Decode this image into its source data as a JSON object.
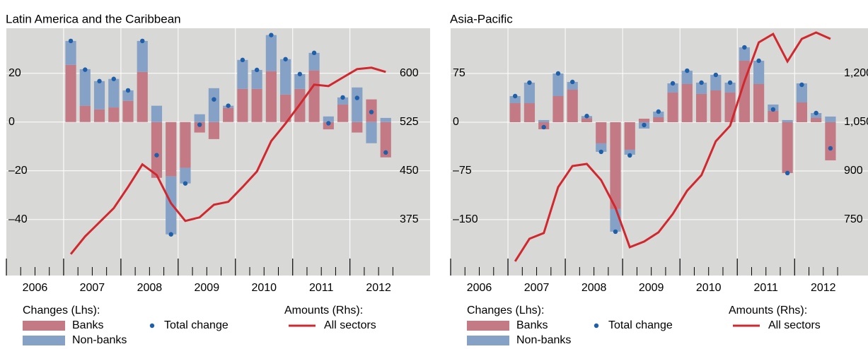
{
  "chart_data": [
    {
      "type": "bar",
      "title": "Latin America and the Caribbean",
      "legend_headings": [
        "Changes (Lhs):",
        "Amounts (Rhs):"
      ],
      "x": [
        2007.125,
        2007.375,
        2007.625,
        2007.875,
        2008.125,
        2008.375,
        2008.625,
        2008.875,
        2009.125,
        2009.375,
        2009.625,
        2009.875,
        2010.125,
        2010.375,
        2010.625,
        2010.875,
        2011.125,
        2011.375,
        2011.625,
        2011.875,
        2012.125,
        2012.375,
        2012.625
      ],
      "xlim": [
        2006,
        2013.4
      ],
      "xticks": [
        2006,
        2007,
        2008,
        2009,
        2010,
        2011,
        2012
      ],
      "ylim": [
        -63,
        38.5
      ],
      "yticks": [
        {
          "value": -40,
          "label": "–40"
        },
        {
          "value": -20,
          "label": "–20"
        },
        0,
        20
      ],
      "y2lim": [
        288.75,
        669.375
      ],
      "y2ticks": [
        375,
        450,
        525,
        600
      ],
      "grid": true,
      "series": [
        {
          "name": "Banks",
          "type": "bar",
          "color": "#c47a84",
          "values": [
            23.5,
            6.7,
            5.2,
            6,
            8.7,
            20.6,
            -22.9,
            -22.3,
            -18.8,
            -4.3,
            -7,
            5.8,
            13.6,
            13.6,
            20.9,
            11.3,
            13.6,
            21.2,
            -3,
            7.2,
            -4.3,
            9.3,
            -14.5
          ]
        },
        {
          "name": "Non-banks",
          "type": "bar",
          "color": "#85a2c6",
          "values": [
            9.8,
            15,
            11.6,
            11.7,
            4.3,
            12.7,
            6.7,
            -23.8,
            -6.4,
            3.2,
            13.9,
            0.9,
            11.9,
            7.8,
            14.8,
            14.5,
            6.1,
            7.2,
            2.3,
            2.9,
            14.2,
            -8.7,
            1.7
          ]
        },
        {
          "name": "Total change",
          "type": "scatter",
          "color": "#1f5ea8",
          "values": [
            33.3,
            21.5,
            16.8,
            17.7,
            13,
            33.3,
            -13.6,
            -46.1,
            -25.2,
            -1.1,
            9.3,
            6.7,
            25.5,
            21.4,
            35.7,
            25.8,
            19.7,
            28.4,
            -0.5,
            10.1,
            9.9,
            4.1,
            -12.5
          ]
        },
        {
          "name": "All sectors",
          "type": "line",
          "axis": "y2",
          "color": "#d0282e",
          "values": [
            321.7,
            348.9,
            370.7,
            392.4,
            425,
            459.8,
            443.5,
            400,
            372.8,
            378.3,
            397.8,
            402.2,
            425,
            448.9,
            495.7,
            522.8,
            552.2,
            582.6,
            580.4,
            593.5,
            606.5,
            608.7,
            602.2
          ]
        }
      ]
    },
    {
      "type": "bar",
      "title": "Asia-Pacific",
      "legend_headings": [
        "Changes (Lhs):",
        "Amounts (Rhs):"
      ],
      "x": [
        2007.125,
        2007.375,
        2007.625,
        2007.875,
        2008.125,
        2008.375,
        2008.625,
        2008.875,
        2009.125,
        2009.375,
        2009.625,
        2009.875,
        2010.125,
        2010.375,
        2010.625,
        2010.875,
        2011.125,
        2011.375,
        2011.625,
        2011.875,
        2012.125,
        2012.375,
        2012.625
      ],
      "xlim": [
        2006,
        2013.28
      ],
      "xticks": [
        2006,
        2007,
        2008,
        2009,
        2010,
        2011,
        2012
      ],
      "ylim": [
        -236,
        144.6
      ],
      "yticks": [
        {
          "value": -150,
          "label": "–150"
        },
        {
          "value": -75,
          "label": "–75"
        },
        0,
        75
      ],
      "y2lim": [
        578,
        1339.2
      ],
      "y2ticks": [
        750,
        900,
        {
          "value": 1050,
          "label": "1,050"
        },
        {
          "value": 1200,
          "label": "1,200"
        }
      ],
      "grid": true,
      "series": [
        {
          "name": "Banks",
          "type": "bar",
          "color": "#c47a84",
          "values": [
            29.3,
            29.3,
            -10.9,
            40.2,
            50,
            6,
            -32.6,
            -133.7,
            -42.4,
            5.4,
            7.6,
            45.7,
            58.7,
            43.5,
            48.9,
            45.7,
            94.6,
            58.7,
            17.4,
            -78.3,
            30.4,
            6.5,
            -58.7
          ]
        },
        {
          "name": "Non-banks",
          "type": "bar",
          "color": "#85a2c6",
          "values": [
            10.9,
            31.6,
            3.3,
            34.8,
            12,
            3.5,
            -13,
            -34.8,
            -7.6,
            -9.8,
            8.7,
            14.1,
            20.6,
            17.4,
            23.9,
            15.2,
            20.6,
            35.9,
            9.8,
            3.3,
            29.4,
            7.6,
            8.7
          ]
        },
        {
          "name": "Total change",
          "type": "scatter",
          "color": "#1f5ea8",
          "values": [
            40.2,
            60.9,
            -7.6,
            75,
            62,
            9.5,
            -45.6,
            -168.5,
            -51.1,
            -4.3,
            16.3,
            59.8,
            79.3,
            60.9,
            72.8,
            60.9,
            115.2,
            94.6,
            19.6,
            -78.3,
            57.6,
            14.1,
            -40.2
          ]
        },
        {
          "name": "All sectors",
          "type": "line",
          "axis": "y2",
          "color": "#d0282e",
          "values": [
            621.7,
            691.3,
            708.7,
            850,
            915.2,
            921.7,
            871.7,
            787,
            665.2,
            682.6,
            710.9,
            767.4,
            839.1,
            887,
            991.3,
            1039.1,
            1176.1,
            1295.7,
            1321.7,
            1237,
            1306.5,
            1326.1,
            1306.5
          ]
        }
      ]
    }
  ]
}
